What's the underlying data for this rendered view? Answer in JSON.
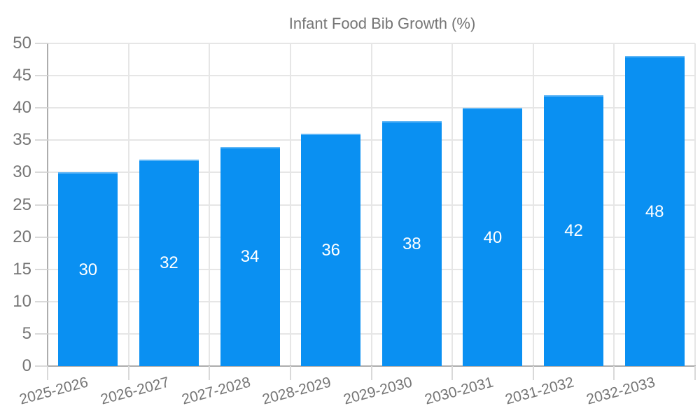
{
  "legend": {
    "label": "Infant Food Bib Growth (%)",
    "swatch_color": "#0a90f2",
    "position": "top-center"
  },
  "colors": {
    "bar": "#0a90f2",
    "grid": "#e6e6e6",
    "axis": "#adadad",
    "tick": "#d9d9d9",
    "axis_label": "#757575",
    "value_label": "#ffffff",
    "background": "#ffffff"
  },
  "chart_data": {
    "type": "bar",
    "title": "",
    "legend_label": "Infant Food Bib Growth (%)",
    "categories": [
      "2025-2026",
      "2026-2027",
      "2027-2028",
      "2028-2029",
      "2029-2030",
      "2030-2031",
      "2031-2032",
      "2032-2033"
    ],
    "values": [
      30,
      32,
      34,
      36,
      38,
      40,
      42,
      48
    ],
    "xlabel": "",
    "ylabel": "",
    "ylim": [
      0,
      50
    ],
    "yticks": [
      0,
      5,
      10,
      15,
      20,
      25,
      30,
      35,
      40,
      45,
      50
    ],
    "grid": true,
    "bar_value_labels": [
      30,
      32,
      34,
      36,
      38,
      40,
      42,
      48
    ],
    "x_label_rotation_deg": -15,
    "legend_position": "top-center"
  }
}
